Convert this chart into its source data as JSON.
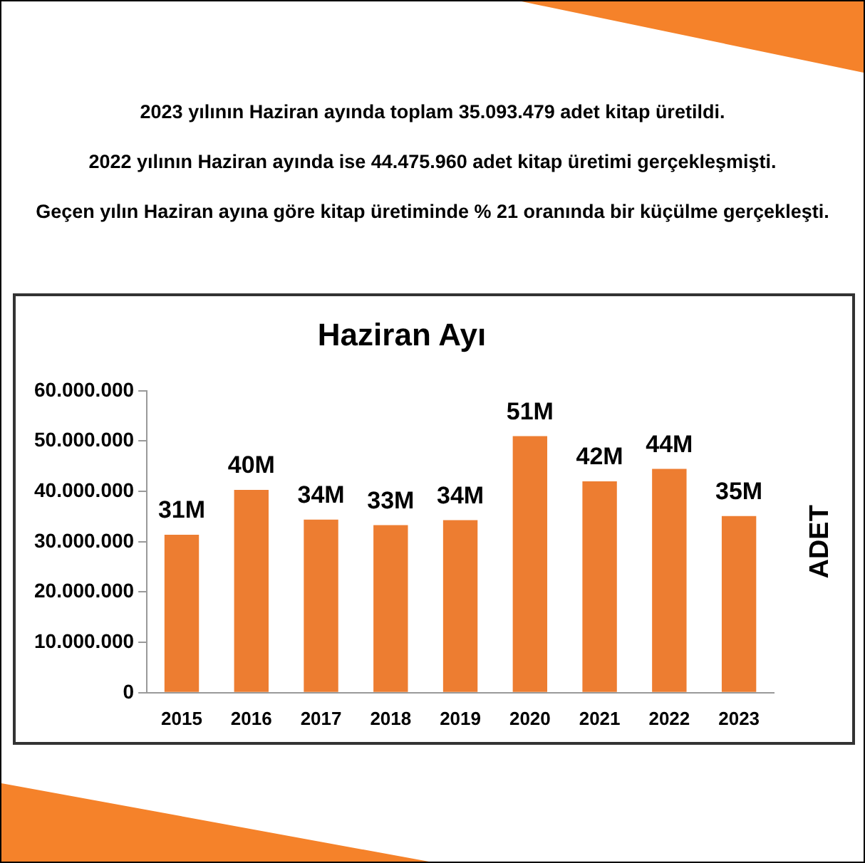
{
  "chart_data": {
    "type": "bar",
    "title": "Haziran Ayı",
    "ylabel": "ADET",
    "annotations": [
      "2023 yılının  Haziran  ayında toplam 35.093.479 adet kitap üretildi.",
      "2022 yılının Haziran ayında ise 44.475.960 adet kitap üretimi gerçekleşmişti.",
      "Geçen yılın Haziran ayına göre kitap üretiminde % 21 oranında bir küçülme gerçekleşti."
    ],
    "categories": [
      "2015",
      "2016",
      "2017",
      "2018",
      "2019",
      "2020",
      "2021",
      "2022",
      "2023"
    ],
    "values": [
      31400000,
      40300000,
      34400000,
      33300000,
      34300000,
      51000000,
      42000000,
      44475960,
      35093479
    ],
    "value_labels": [
      "31M",
      "40M",
      "34M",
      "33M",
      "34M",
      "51M",
      "42M",
      "44M",
      "35M"
    ],
    "color": "#ed7d31",
    "ylim": [
      0,
      60000000
    ],
    "yticks": [
      {
        "value": 0,
        "label": "0"
      },
      {
        "value": 10000000,
        "label": "10.000.000"
      },
      {
        "value": 20000000,
        "label": "20.000.000"
      },
      {
        "value": 30000000,
        "label": "30.000.000"
      },
      {
        "value": 40000000,
        "label": "40.000.000"
      },
      {
        "value": 50000000,
        "label": "50.000.000"
      },
      {
        "value": 60000000,
        "label": "60.000.000"
      }
    ],
    "grid": false,
    "legend": false
  }
}
